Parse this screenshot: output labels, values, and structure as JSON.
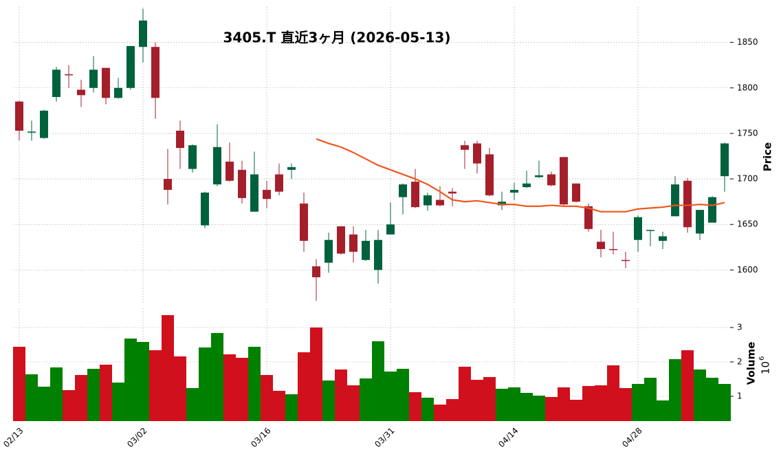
{
  "chart_data": [
    {
      "type": "candlestick",
      "title": "3405.T  直近3ヶ月 (2026-05-13)",
      "ylabel": "Price",
      "grid": true,
      "categories": [
        "02/13",
        null,
        null,
        null,
        null,
        null,
        null,
        null,
        null,
        null,
        "03/02",
        null,
        null,
        null,
        null,
        null,
        null,
        null,
        null,
        null,
        "03/16",
        null,
        null,
        null,
        null,
        null,
        null,
        null,
        null,
        null,
        "03/31",
        null,
        null,
        null,
        null,
        null,
        null,
        null,
        null,
        null,
        "04/14",
        null,
        null,
        null,
        null,
        null,
        null,
        null,
        null,
        null,
        "04/28",
        null,
        null,
        null,
        null,
        null,
        null,
        null
      ],
      "open": [
        1785,
        1751,
        1745,
        1790,
        1815,
        1798,
        1800,
        1822,
        1789,
        1800,
        1845,
        1845,
        1700,
        1753,
        1711,
        1649,
        1694,
        1719,
        1710,
        1664,
        1688,
        1705,
        1710,
        1673,
        1604,
        1608,
        1648,
        1639,
        1611,
        1600,
        1639,
        1680,
        1697,
        1671,
        1677,
        1686,
        1737,
        1739,
        1727,
        1671,
        1685,
        1691,
        1702,
        1705,
        1724,
        1695,
        1670,
        1631,
        1623,
        1611,
        1633,
        1643,
        1632,
        1659,
        1698,
        1640,
        1652,
        1703
      ],
      "high": [
        1786,
        1764,
        1776,
        1823,
        1825,
        1809,
        1835,
        1822,
        1811,
        1846,
        1887,
        1850,
        1733,
        1764,
        1738,
        1686,
        1760,
        1740,
        1720,
        1730,
        1698,
        1717,
        1717,
        1685,
        1612,
        1641,
        1648,
        1648,
        1644,
        1644,
        1674,
        1695,
        1711,
        1685,
        1692,
        1690,
        1742,
        1742,
        1734,
        1686,
        1696,
        1709,
        1720,
        1708,
        1724,
        1695,
        1673,
        1644,
        1642,
        1620,
        1660,
        1644,
        1642,
        1703,
        1701,
        1666,
        1681,
        1740
      ],
      "low": [
        1742,
        1742,
        1744,
        1785,
        1800,
        1779,
        1795,
        1782,
        1788,
        1798,
        1828,
        1766,
        1672,
        1711,
        1707,
        1646,
        1692,
        1697,
        1673,
        1664,
        1668,
        1682,
        1700,
        1620,
        1566,
        1597,
        1617,
        1608,
        1610,
        1585,
        1639,
        1661,
        1668,
        1665,
        1670,
        1670,
        1711,
        1706,
        1681,
        1666,
        1677,
        1690,
        1701,
        1692,
        1671,
        1674,
        1642,
        1614,
        1617,
        1602,
        1620,
        1626,
        1623,
        1659,
        1641,
        1633,
        1652,
        1686
      ],
      "close": [
        1753,
        1752,
        1775,
        1820,
        1814,
        1792,
        1820,
        1789,
        1800,
        1846,
        1874,
        1789,
        1688,
        1734,
        1737,
        1685,
        1735,
        1698,
        1679,
        1705,
        1678,
        1686,
        1713,
        1632,
        1592,
        1633,
        1618,
        1620,
        1632,
        1633,
        1650,
        1694,
        1669,
        1682,
        1671,
        1684,
        1732,
        1717,
        1682,
        1675,
        1688,
        1695,
        1704,
        1693,
        1672,
        1675,
        1645,
        1623,
        1622,
        1610,
        1658,
        1644,
        1637,
        1694,
        1647,
        1666,
        1680,
        1739
      ],
      "up_color": "#00613d",
      "down_color": "#a51f2b",
      "moving_average": {
        "color": "#f0561c",
        "values": [
          null,
          null,
          null,
          null,
          null,
          null,
          null,
          null,
          null,
          null,
          null,
          null,
          null,
          null,
          null,
          null,
          null,
          null,
          null,
          null,
          null,
          null,
          null,
          null,
          1744,
          1739,
          1735,
          1729,
          1722,
          1715,
          1710,
          1705,
          1700,
          1694,
          1686,
          1677,
          1675,
          1676,
          1674,
          1672,
          1672,
          1670,
          1670,
          1671,
          1670,
          1670,
          1668,
          1664,
          1664,
          1664,
          1667,
          1668,
          1669,
          1671,
          1671,
          1672,
          1671,
          1674
        ]
      },
      "ylim": [
        1564,
        1889
      ],
      "yticks": [
        1600,
        1650,
        1700,
        1750,
        1800,
        1850
      ]
    },
    {
      "type": "volume",
      "ylabel": "Volume",
      "scale_base": "10",
      "scale_exponent": "6",
      "grid": true,
      "values": [
        2.44,
        1.64,
        1.28,
        1.84,
        1.18,
        1.62,
        1.8,
        1.92,
        1.4,
        2.68,
        2.58,
        2.34,
        3.36,
        2.16,
        1.24,
        2.42,
        2.84,
        2.22,
        2.12,
        2.44,
        1.62,
        1.16,
        1.06,
        2.28,
        3.0,
        1.46,
        1.78,
        1.32,
        1.52,
        2.6,
        1.72,
        1.8,
        1.12,
        0.96,
        0.76,
        0.92,
        1.86,
        1.48,
        1.56,
        1.22,
        1.26,
        1.1,
        1.02,
        0.98,
        1.26,
        0.9,
        1.3,
        1.32,
        1.9,
        1.24,
        1.36,
        1.54,
        0.88,
        2.08,
        2.34,
        1.78,
        1.54,
        1.36
      ],
      "up_color": "#008000",
      "down_color": "#d0101c",
      "ylim": [
        0.28,
        3.56
      ],
      "yticks": [
        1,
        2,
        3
      ]
    }
  ]
}
